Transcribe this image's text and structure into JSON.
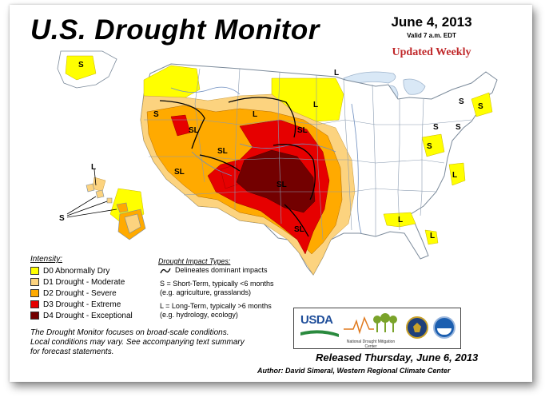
{
  "header": {
    "title": "U.S. Drought Monitor",
    "date": "June 4, 2013",
    "valid": "Valid 7 a.m. EDT",
    "updated": "Updated Weekly"
  },
  "legend": {
    "title": "Intensity:",
    "items": [
      {
        "label": "D0 Abnormally Dry",
        "color": "#ffff00"
      },
      {
        "label": "D1 Drought - Moderate",
        "color": "#fcd37f"
      },
      {
        "label": "D2 Drought - Severe",
        "color": "#ffaa00"
      },
      {
        "label": "D3 Drought - Extreme",
        "color": "#e60000"
      },
      {
        "label": "D4 Drought - Exceptional",
        "color": "#730000"
      }
    ]
  },
  "impact": {
    "title": "Drought Impact Types:",
    "boundary": "Delineates dominant impacts",
    "short_term": "S = Short-Term, typically <6 months",
    "short_term_eg": "(e.g. agriculture, grasslands)",
    "long_term": "L = Long-Term, typically >6 months",
    "long_term_eg": "(e.g. hydrology, ecology)"
  },
  "note": {
    "line1": "The Drought Monitor focuses on broad-scale conditions.",
    "line2": "Local conditions may vary. See accompanying text summary",
    "line3": "for forecast statements."
  },
  "logos": {
    "usda": "USDA",
    "ndmc": "National Drought Mitigation Center"
  },
  "map_labels": {
    "s": "S",
    "l": "L",
    "sl": "SL"
  },
  "footer": {
    "released": "Released Thursday, June 6, 2013",
    "author": "Author: David Simeral, Western Regional Climate Center"
  },
  "colors": {
    "d0": "#ffff00",
    "d1": "#fcd37f",
    "d2": "#ffaa00",
    "d3": "#e60000",
    "d4": "#730000",
    "water": "#d9e8f6",
    "state_line": "#8a9bb0",
    "river": "#6f8fc0",
    "title_red": "#c0282a"
  }
}
